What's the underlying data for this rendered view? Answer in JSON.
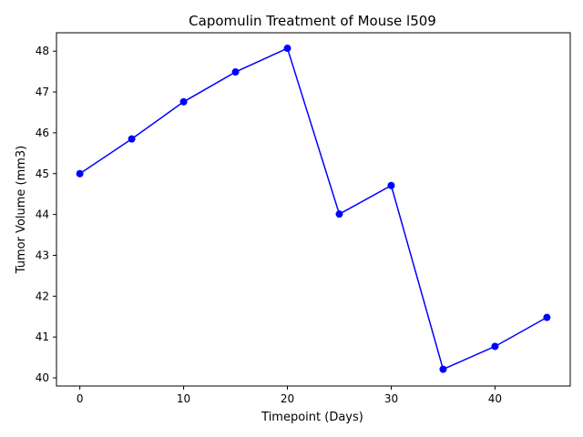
{
  "chart_data": {
    "type": "line",
    "title": "Capomulin Treatment of Mouse l509",
    "xlabel": "Timepoint (Days)",
    "ylabel": "Tumor Volume (mm3)",
    "x": [
      0,
      5,
      10,
      15,
      20,
      25,
      30,
      35,
      40,
      45
    ],
    "series": [
      {
        "values": [
          45.0,
          45.85,
          46.76,
          47.49,
          48.07,
          44.01,
          44.71,
          40.21,
          40.77,
          41.48
        ],
        "color": "#0000ff",
        "marker": "circle"
      }
    ],
    "xlim": [
      -2.25,
      47.25
    ],
    "ylim": [
      39.8,
      48.45
    ],
    "xticks": [
      0,
      10,
      20,
      30,
      40
    ],
    "yticks": [
      40,
      41,
      42,
      43,
      44,
      45,
      46,
      47,
      48
    ],
    "grid": false,
    "legend": "none"
  }
}
